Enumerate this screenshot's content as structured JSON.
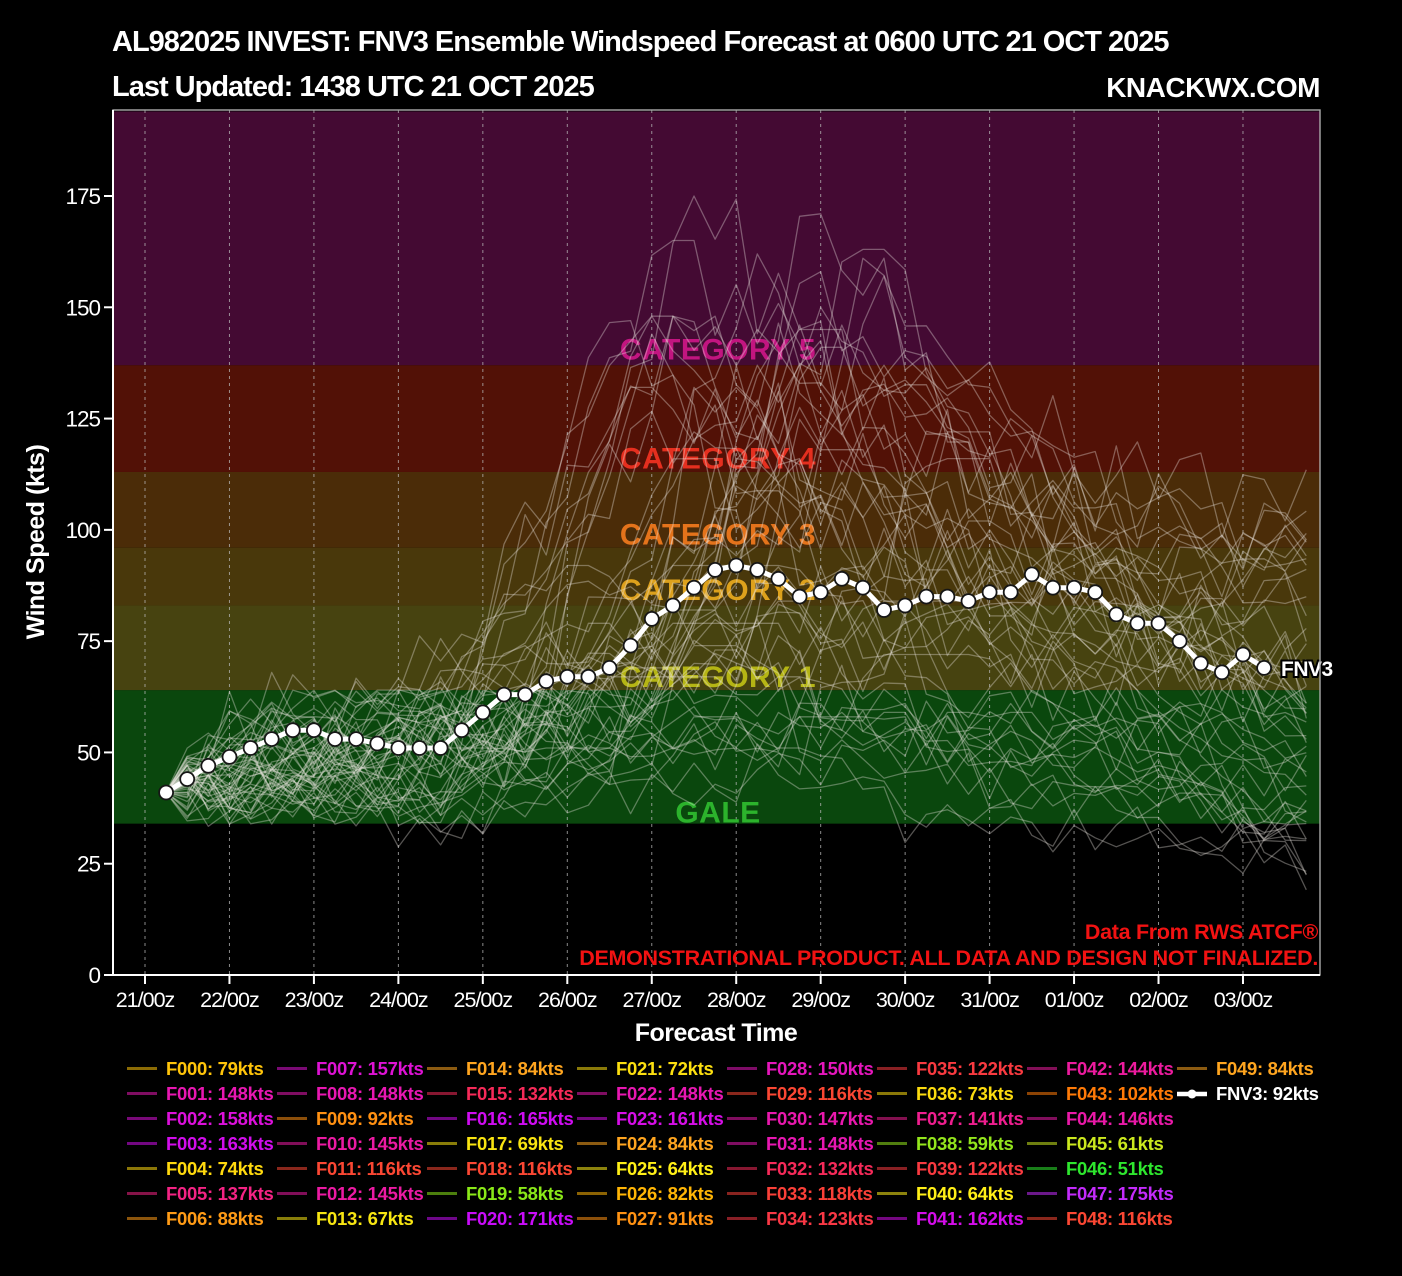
{
  "header": {
    "title": "AL982025 INVEST: FNV3 Ensemble Windspeed Forecast at 0600 UTC 21 OCT 2025",
    "subtitle": "Last Updated: 1438 UTC 21 OCT 2025",
    "brand": "KNACKWX.COM"
  },
  "watermark": {
    "line1": "Data From RWS ATCF®",
    "line2": "DEMONSTRATIONAL PRODUCT. ALL DATA AND DESIGN NOT FINALIZED.",
    "color": "#f21212"
  },
  "chart_data": {
    "type": "line",
    "title": "AL982025 INVEST: FNV3 Ensemble Windspeed Forecast at 0600 UTC 21 OCT 2025",
    "xlabel": "Forecast Time",
    "ylabel": "Wind Speed (kts)",
    "x_tick_labels": [
      "21/00z",
      "22/00z",
      "23/00z",
      "24/00z",
      "25/00z",
      "26/00z",
      "27/00z",
      "28/00z",
      "29/00z",
      "30/00z",
      "31/00z",
      "01/00z",
      "02/00z",
      "03/00z"
    ],
    "y_ticks": [
      0,
      25,
      50,
      75,
      100,
      125,
      150,
      175
    ],
    "ylim": [
      0,
      194
    ],
    "grid": "vertical-dashed",
    "legend_position": "bottom",
    "step_hours": 6,
    "intensity_bands": [
      {
        "id": "gale",
        "label": "GALE",
        "from_kts": 34,
        "to_kts": 64,
        "fill": "#0a470d",
        "label_color": "#2cb32c",
        "label_kts": 36.5
      },
      {
        "id": "cat1",
        "label": "CATEGORY 1",
        "from_kts": 64,
        "to_kts": 83,
        "fill": "#474310",
        "label_color": "#b5b514",
        "label_kts": 67
      },
      {
        "id": "cat2",
        "label": "CATEGORY 2",
        "from_kts": 83,
        "to_kts": 96,
        "fill": "#49380b",
        "label_color": "#dda11c",
        "label_kts": 86.5
      },
      {
        "id": "cat3",
        "label": "CATEGORY 3",
        "from_kts": 96,
        "to_kts": 113,
        "fill": "#4b2c08",
        "label_color": "#e4731b",
        "label_kts": 99
      },
      {
        "id": "cat4",
        "label": "CATEGORY 4",
        "from_kts": 113,
        "to_kts": 137,
        "fill": "#521106",
        "label_color": "#e52f1f",
        "label_kts": 116
      },
      {
        "id": "cat5",
        "label": "CATEGORY 5",
        "from_kts": 137,
        "to_kts": 194,
        "fill": "#440a33",
        "label_color": "#c21580",
        "label_kts": 140.5
      }
    ],
    "mean_series": {
      "name": "FNV3",
      "peak_kts": 92,
      "color": "#ffffff",
      "times": [
        "21/06z",
        "21/12z",
        "21/18z",
        "22/00z",
        "22/06z",
        "22/12z",
        "22/18z",
        "23/00z",
        "23/06z",
        "23/12z",
        "23/18z",
        "24/00z",
        "24/06z",
        "24/12z",
        "24/18z",
        "25/00z",
        "25/06z",
        "25/12z",
        "25/18z",
        "26/00z",
        "26/06z",
        "26/12z",
        "26/18z",
        "27/00z",
        "27/06z",
        "27/12z",
        "27/18z",
        "28/00z",
        "28/06z",
        "28/12z",
        "28/18z",
        "29/00z",
        "29/06z",
        "29/12z",
        "29/18z",
        "30/00z",
        "30/06z",
        "30/12z",
        "30/18z",
        "31/00z",
        "31/06z",
        "31/12z",
        "31/18z",
        "01/00z",
        "01/06z",
        "01/12z",
        "01/18z",
        "02/00z",
        "02/06z",
        "02/12z",
        "02/18z",
        "03/00z",
        "03/06z"
      ],
      "values": [
        41,
        44,
        47,
        49,
        51,
        53,
        55,
        55,
        53,
        53,
        52,
        51,
        51,
        51,
        55,
        59,
        63,
        63,
        66,
        67,
        67,
        69,
        74,
        80,
        83,
        87,
        91,
        92,
        91,
        89,
        85,
        86,
        89,
        87,
        82,
        83,
        85,
        85,
        84,
        86,
        86,
        90,
        87,
        87,
        86,
        81,
        79,
        79,
        75,
        70,
        68,
        72,
        69
      ]
    },
    "ensemble_members": [
      {
        "id": "F000",
        "peak_kts": 79,
        "color": "#ffc40a"
      },
      {
        "id": "F001",
        "peak_kts": 148,
        "color": "#e817b2"
      },
      {
        "id": "F002",
        "peak_kts": 158,
        "color": "#dc10db"
      },
      {
        "id": "F003",
        "peak_kts": 163,
        "color": "#d20dec"
      },
      {
        "id": "F004",
        "peak_kts": 74,
        "color": "#ffd90e"
      },
      {
        "id": "F005",
        "peak_kts": 137,
        "color": "#f42384"
      },
      {
        "id": "F006",
        "peak_kts": 88,
        "color": "#ff9b16"
      },
      {
        "id": "F007",
        "peak_kts": 157,
        "color": "#de12d4"
      },
      {
        "id": "F008",
        "peak_kts": 148,
        "color": "#e817b2"
      },
      {
        "id": "F009",
        "peak_kts": 92,
        "color": "#ff9012"
      },
      {
        "id": "F010",
        "peak_kts": 145,
        "color": "#eb1aa3"
      },
      {
        "id": "F011",
        "peak_kts": 116,
        "color": "#fb4733"
      },
      {
        "id": "F012",
        "peak_kts": 145,
        "color": "#eb1aa3"
      },
      {
        "id": "F013",
        "peak_kts": 67,
        "color": "#f7e512"
      },
      {
        "id": "F014",
        "peak_kts": 84,
        "color": "#ffa51f"
      },
      {
        "id": "F015",
        "peak_kts": 132,
        "color": "#f62a59"
      },
      {
        "id": "F016",
        "peak_kts": 165,
        "color": "#cf0cf1"
      },
      {
        "id": "F017",
        "peak_kts": 69,
        "color": "#f9e411"
      },
      {
        "id": "F018",
        "peak_kts": 116,
        "color": "#fb4733"
      },
      {
        "id": "F019",
        "peak_kts": 58,
        "color": "#8ae818"
      },
      {
        "id": "F020",
        "peak_kts": 171,
        "color": "#c90cf9"
      },
      {
        "id": "F021",
        "peak_kts": 72,
        "color": "#fcdf10"
      },
      {
        "id": "F022",
        "peak_kts": 148,
        "color": "#e817b2"
      },
      {
        "id": "F023",
        "peak_kts": 161,
        "color": "#d60ee7"
      },
      {
        "id": "F024",
        "peak_kts": 84,
        "color": "#ffa51f"
      },
      {
        "id": "F025",
        "peak_kts": 64,
        "color": "#ffef17"
      },
      {
        "id": "F026",
        "peak_kts": 82,
        "color": "#ffb505"
      },
      {
        "id": "F027",
        "peak_kts": 91,
        "color": "#ff9213"
      },
      {
        "id": "F028",
        "peak_kts": 150,
        "color": "#e616bc"
      },
      {
        "id": "F029",
        "peak_kts": 116,
        "color": "#fb4733"
      },
      {
        "id": "F030",
        "peak_kts": 147,
        "color": "#e918ad"
      },
      {
        "id": "F031",
        "peak_kts": 148,
        "color": "#e817b2"
      },
      {
        "id": "F032",
        "peak_kts": 132,
        "color": "#f62a59"
      },
      {
        "id": "F033",
        "peak_kts": 118,
        "color": "#fa4038"
      },
      {
        "id": "F034",
        "peak_kts": 123,
        "color": "#f93845"
      },
      {
        "id": "F035",
        "peak_kts": 122,
        "color": "#f93a40"
      },
      {
        "id": "F036",
        "peak_kts": 73,
        "color": "#fbdb0f"
      },
      {
        "id": "F037",
        "peak_kts": 141,
        "color": "#ef1e8f"
      },
      {
        "id": "F038",
        "peak_kts": 59,
        "color": "#93e51c"
      },
      {
        "id": "F039",
        "peak_kts": 122,
        "color": "#f93a40"
      },
      {
        "id": "F040",
        "peak_kts": 64,
        "color": "#ffef17"
      },
      {
        "id": "F041",
        "peak_kts": 162,
        "color": "#d40dea"
      },
      {
        "id": "F042",
        "peak_kts": 144,
        "color": "#ec1b9e"
      },
      {
        "id": "F043",
        "peak_kts": 102,
        "color": "#ff7a07"
      },
      {
        "id": "F044",
        "peak_kts": 146,
        "color": "#ea19a8"
      },
      {
        "id": "F045",
        "peak_kts": 61,
        "color": "#cbe81e"
      },
      {
        "id": "F046",
        "peak_kts": 51,
        "color": "#2ee62e"
      },
      {
        "id": "F047",
        "peak_kts": 175,
        "color": "#c32bfb"
      },
      {
        "id": "F048",
        "peak_kts": 116,
        "color": "#fb4733"
      },
      {
        "id": "F049",
        "peak_kts": 84,
        "color": "#ffa51f"
      }
    ],
    "legend_unit_suffix": "kts"
  }
}
